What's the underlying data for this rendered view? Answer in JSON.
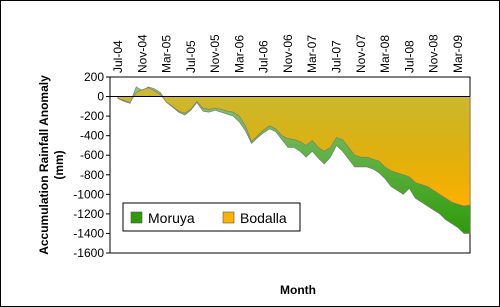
{
  "chart_data": {
    "type": "area",
    "x_label": "Month",
    "y_label": [
      "Accumulation Rainfall Anomaly",
      "(mm)"
    ],
    "categories": [
      "Jul-04",
      null,
      null,
      null,
      "Nov-04",
      null,
      null,
      null,
      "Mar-05",
      null,
      null,
      null,
      "Jul-05",
      null,
      null,
      null,
      "Nov-05",
      null,
      null,
      null,
      "Mar-06",
      null,
      null,
      null,
      "Jul-06",
      null,
      null,
      null,
      "Nov-06",
      null,
      null,
      null,
      "Mar-07",
      null,
      null,
      null,
      "Jul-07",
      null,
      null,
      null,
      "Nov-07",
      null,
      null,
      null,
      "Mar-08",
      null,
      null,
      null,
      "Jul-08",
      null,
      null,
      null,
      "Nov-08",
      null,
      null,
      null,
      "Mar-09",
      null,
      null
    ],
    "series": [
      {
        "name": "Moruya",
        "color": "#2e9a0a",
        "values": [
          -20,
          -50,
          -70,
          100,
          60,
          100,
          80,
          40,
          -60,
          -110,
          -160,
          -190,
          -140,
          -60,
          -150,
          -160,
          -140,
          -160,
          -180,
          -200,
          -260,
          -350,
          -480,
          -420,
          -370,
          -330,
          -360,
          -440,
          -520,
          -520,
          -560,
          -620,
          -560,
          -630,
          -690,
          -620,
          -500,
          -560,
          -640,
          -720,
          -720,
          -720,
          -740,
          -780,
          -840,
          -920,
          -960,
          -1000,
          -940,
          -1040,
          -1080,
          -1120,
          -1160,
          -1200,
          -1260,
          -1300,
          -1340,
          -1400,
          -1400
        ]
      },
      {
        "name": "Bodalla",
        "color": "#ffb000",
        "values": [
          -20,
          -40,
          -60,
          40,
          70,
          90,
          60,
          20,
          -60,
          -100,
          -150,
          -170,
          -130,
          -50,
          -120,
          -130,
          -120,
          -130,
          -150,
          -160,
          -200,
          -300,
          -460,
          -400,
          -340,
          -300,
          -330,
          -400,
          -430,
          -440,
          -460,
          -500,
          -450,
          -520,
          -560,
          -520,
          -420,
          -440,
          -520,
          -600,
          -620,
          -620,
          -640,
          -660,
          -720,
          -760,
          -780,
          -800,
          -820,
          -880,
          -900,
          -920,
          -960,
          -1000,
          -1040,
          -1080,
          -1100,
          -1120,
          -1110
        ]
      }
    ],
    "ylim": [
      -1600,
      200
    ],
    "yticks": [
      -1600,
      -1400,
      -1200,
      -1000,
      -800,
      -600,
      -400,
      -200,
      0,
      200
    ],
    "legend": "bottom-left"
  }
}
